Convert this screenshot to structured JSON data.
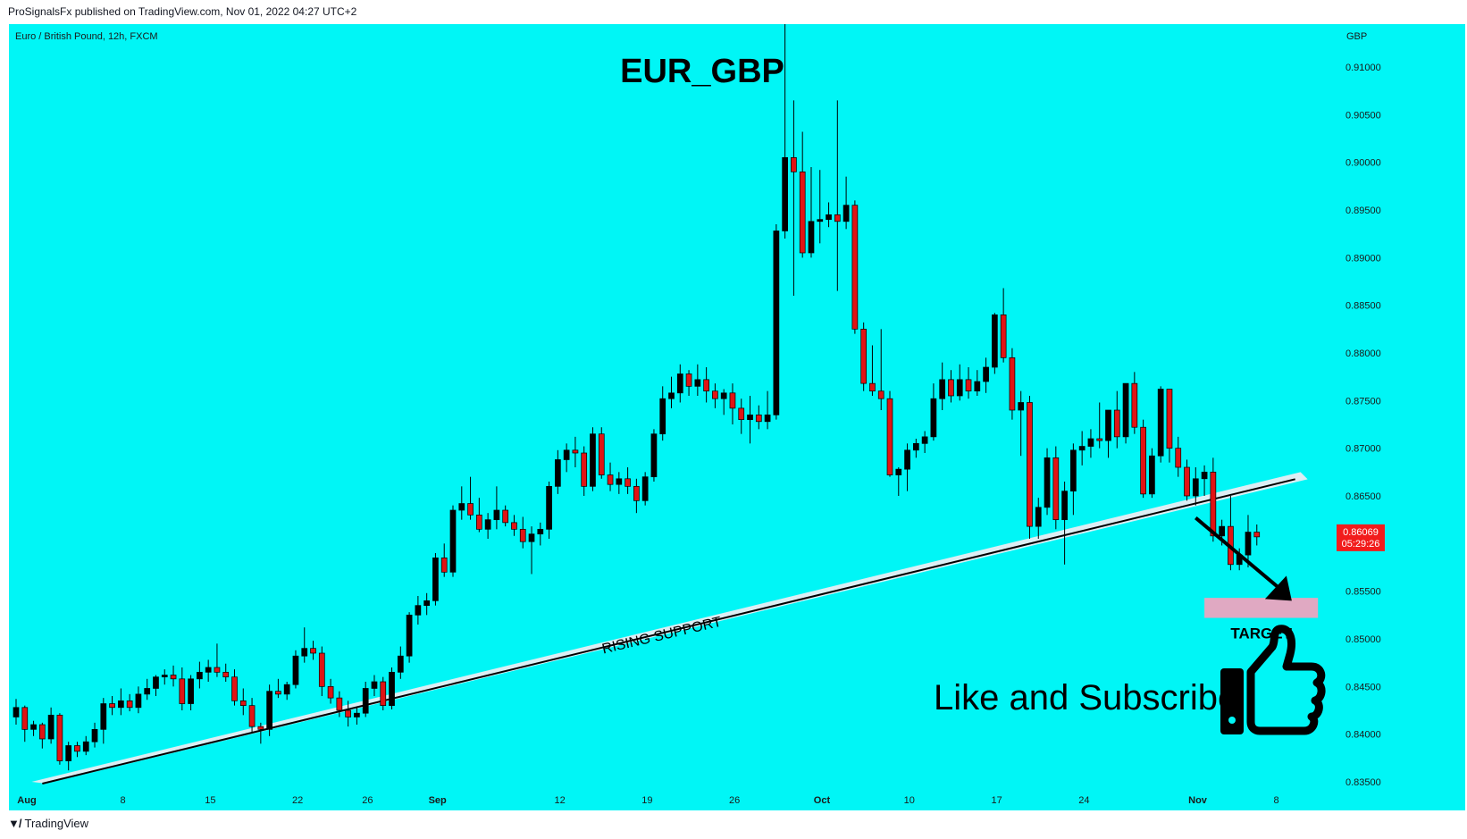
{
  "header": {
    "published": "ProSignalsFx published on TradingView.com, Nov 01, 2022 04:27 UTC+2",
    "symbol": "Euro / British Pound, 12h, FXCM"
  },
  "footer": {
    "brand": "TradingView",
    "brand_icon": "tradingview-logo-icon"
  },
  "chart_data": {
    "type": "candlestick",
    "title": "EUR_GBP",
    "currency_label": "GBP",
    "ylim": [
      0.832,
      0.9145
    ],
    "y_ticks": [
      "0.91000",
      "0.90500",
      "0.90000",
      "0.89500",
      "0.89000",
      "0.88500",
      "0.88000",
      "0.87500",
      "0.87000",
      "0.86500",
      "0.86000",
      "0.85500",
      "0.85000",
      "0.84500",
      "0.84000",
      "0.83500"
    ],
    "y_tick_values": [
      0.91,
      0.905,
      0.9,
      0.895,
      0.89,
      0.885,
      0.88,
      0.875,
      0.87,
      0.865,
      0.86,
      0.855,
      0.85,
      0.845,
      0.84,
      0.835
    ],
    "x_ticks": [
      {
        "label": "Aug",
        "index": 0,
        "bold": true
      },
      {
        "label": "8",
        "index": 11,
        "bold": false
      },
      {
        "label": "15",
        "index": 21,
        "bold": false
      },
      {
        "label": "22",
        "index": 31,
        "bold": false
      },
      {
        "label": "26",
        "index": 39,
        "bold": false
      },
      {
        "label": "Sep",
        "index": 47,
        "bold": true
      },
      {
        "label": "12",
        "index": 61,
        "bold": false
      },
      {
        "label": "19",
        "index": 71,
        "bold": false
      },
      {
        "label": "26",
        "index": 81,
        "bold": false
      },
      {
        "label": "Oct",
        "index": 91,
        "bold": true
      },
      {
        "label": "10",
        "index": 101,
        "bold": false
      },
      {
        "label": "17",
        "index": 111,
        "bold": false
      },
      {
        "label": "24",
        "index": 121,
        "bold": false
      },
      {
        "label": "Nov",
        "index": 134,
        "bold": true
      },
      {
        "label": "8",
        "index": 143,
        "bold": false
      }
    ],
    "candles": [
      [
        0.8418,
        0.8437,
        0.841,
        0.8428
      ],
      [
        0.8428,
        0.843,
        0.8392,
        0.8405
      ],
      [
        0.8405,
        0.8414,
        0.8398,
        0.841
      ],
      [
        0.841,
        0.8412,
        0.8385,
        0.8395
      ],
      [
        0.8395,
        0.8428,
        0.839,
        0.842
      ],
      [
        0.842,
        0.8422,
        0.8368,
        0.8372
      ],
      [
        0.8372,
        0.8392,
        0.8362,
        0.8388
      ],
      [
        0.8388,
        0.8392,
        0.8376,
        0.8382
      ],
      [
        0.8382,
        0.8398,
        0.8378,
        0.8392
      ],
      [
        0.8392,
        0.8412,
        0.8386,
        0.8405
      ],
      [
        0.8405,
        0.8438,
        0.839,
        0.8432
      ],
      [
        0.8432,
        0.844,
        0.842,
        0.8428
      ],
      [
        0.8428,
        0.8448,
        0.842,
        0.8435
      ],
      [
        0.8435,
        0.8442,
        0.8424,
        0.8428
      ],
      [
        0.8428,
        0.845,
        0.8422,
        0.8442
      ],
      [
        0.8442,
        0.8458,
        0.8436,
        0.8448
      ],
      [
        0.8448,
        0.8462,
        0.844,
        0.846
      ],
      [
        0.846,
        0.8468,
        0.8452,
        0.8462
      ],
      [
        0.8462,
        0.8472,
        0.845,
        0.8458
      ],
      [
        0.8458,
        0.847,
        0.8425,
        0.8432
      ],
      [
        0.8432,
        0.8462,
        0.8425,
        0.8458
      ],
      [
        0.8458,
        0.8476,
        0.8448,
        0.8465
      ],
      [
        0.8465,
        0.8478,
        0.8455,
        0.847
      ],
      [
        0.847,
        0.8495,
        0.846,
        0.8465
      ],
      [
        0.8465,
        0.8474,
        0.8455,
        0.846
      ],
      [
        0.846,
        0.8468,
        0.843,
        0.8435
      ],
      [
        0.8435,
        0.8448,
        0.842,
        0.843
      ],
      [
        0.843,
        0.8438,
        0.8402,
        0.8408
      ],
      [
        0.8408,
        0.8412,
        0.839,
        0.8405
      ],
      [
        0.8405,
        0.8452,
        0.8398,
        0.8445
      ],
      [
        0.8445,
        0.8458,
        0.8438,
        0.8442
      ],
      [
        0.8442,
        0.8455,
        0.8436,
        0.8452
      ],
      [
        0.8452,
        0.8488,
        0.8448,
        0.8482
      ],
      [
        0.8482,
        0.8512,
        0.8475,
        0.849
      ],
      [
        0.849,
        0.8498,
        0.8478,
        0.8485
      ],
      [
        0.8485,
        0.8492,
        0.844,
        0.845
      ],
      [
        0.845,
        0.8458,
        0.8432,
        0.8438
      ],
      [
        0.8438,
        0.8445,
        0.8418,
        0.8425
      ],
      [
        0.8425,
        0.8435,
        0.8408,
        0.8418
      ],
      [
        0.8418,
        0.8428,
        0.841,
        0.8422
      ],
      [
        0.8422,
        0.8455,
        0.8418,
        0.8448
      ],
      [
        0.8448,
        0.8462,
        0.844,
        0.8455
      ],
      [
        0.8455,
        0.846,
        0.8425,
        0.843
      ],
      [
        0.843,
        0.847,
        0.8426,
        0.8465
      ],
      [
        0.8465,
        0.8492,
        0.8458,
        0.8482
      ],
      [
        0.8482,
        0.8528,
        0.8475,
        0.8525
      ],
      [
        0.8525,
        0.8545,
        0.8515,
        0.8535
      ],
      [
        0.8535,
        0.8548,
        0.8525,
        0.854
      ],
      [
        0.854,
        0.859,
        0.8535,
        0.8585
      ],
      [
        0.8585,
        0.86,
        0.8565,
        0.857
      ],
      [
        0.857,
        0.864,
        0.8565,
        0.8635
      ],
      [
        0.8635,
        0.866,
        0.8625,
        0.8642
      ],
      [
        0.8642,
        0.867,
        0.8625,
        0.863
      ],
      [
        0.863,
        0.8648,
        0.8612,
        0.8615
      ],
      [
        0.8615,
        0.8632,
        0.8605,
        0.8625
      ],
      [
        0.8625,
        0.866,
        0.8615,
        0.8635
      ],
      [
        0.8635,
        0.864,
        0.8618,
        0.8622
      ],
      [
        0.8622,
        0.863,
        0.8608,
        0.8615
      ],
      [
        0.8615,
        0.8628,
        0.8595,
        0.8602
      ],
      [
        0.8602,
        0.8618,
        0.8568,
        0.861
      ],
      [
        0.861,
        0.8622,
        0.8598,
        0.8615
      ],
      [
        0.8615,
        0.8665,
        0.8605,
        0.866
      ],
      [
        0.866,
        0.8698,
        0.8652,
        0.8688
      ],
      [
        0.8688,
        0.8705,
        0.8675,
        0.8698
      ],
      [
        0.8698,
        0.8712,
        0.868,
        0.8695
      ],
      [
        0.8695,
        0.8702,
        0.865,
        0.866
      ],
      [
        0.866,
        0.8722,
        0.8655,
        0.8715
      ],
      [
        0.8715,
        0.8722,
        0.8668,
        0.8672
      ],
      [
        0.8672,
        0.8685,
        0.8655,
        0.8662
      ],
      [
        0.8662,
        0.8675,
        0.8652,
        0.8668
      ],
      [
        0.8668,
        0.868,
        0.8652,
        0.866
      ],
      [
        0.866,
        0.8668,
        0.8632,
        0.8645
      ],
      [
        0.8645,
        0.8675,
        0.864,
        0.867
      ],
      [
        0.867,
        0.872,
        0.8665,
        0.8715
      ],
      [
        0.8715,
        0.8765,
        0.8708,
        0.8752
      ],
      [
        0.8752,
        0.8775,
        0.8742,
        0.8758
      ],
      [
        0.8758,
        0.8788,
        0.8748,
        0.8778
      ],
      [
        0.8778,
        0.8782,
        0.8755,
        0.8765
      ],
      [
        0.8765,
        0.8788,
        0.8755,
        0.8772
      ],
      [
        0.8772,
        0.8785,
        0.8748,
        0.876
      ],
      [
        0.876,
        0.8768,
        0.8742,
        0.8752
      ],
      [
        0.8752,
        0.8762,
        0.8735,
        0.8758
      ],
      [
        0.8758,
        0.8768,
        0.8725,
        0.8742
      ],
      [
        0.8742,
        0.8752,
        0.8715,
        0.873
      ],
      [
        0.873,
        0.8755,
        0.8705,
        0.8735
      ],
      [
        0.8735,
        0.8745,
        0.872,
        0.8728
      ],
      [
        0.8728,
        0.876,
        0.872,
        0.8735
      ],
      [
        0.8735,
        0.8935,
        0.873,
        0.8928
      ],
      [
        0.8928,
        0.9155,
        0.892,
        0.9005
      ],
      [
        0.9005,
        0.9065,
        0.886,
        0.899
      ],
      [
        0.899,
        0.9032,
        0.89,
        0.8905
      ],
      [
        0.8905,
        0.8995,
        0.89,
        0.8938
      ],
      [
        0.8938,
        0.8992,
        0.8915,
        0.894
      ],
      [
        0.894,
        0.8958,
        0.8932,
        0.8945
      ],
      [
        0.8945,
        0.9065,
        0.8865,
        0.8938
      ],
      [
        0.8938,
        0.8985,
        0.893,
        0.8955
      ],
      [
        0.8955,
        0.896,
        0.882,
        0.8825
      ],
      [
        0.8825,
        0.8832,
        0.876,
        0.8768
      ],
      [
        0.8768,
        0.8808,
        0.8755,
        0.876
      ],
      [
        0.876,
        0.8825,
        0.874,
        0.8752
      ],
      [
        0.8752,
        0.876,
        0.867,
        0.8672
      ],
      [
        0.8672,
        0.868,
        0.865,
        0.8678
      ],
      [
        0.8678,
        0.8705,
        0.8655,
        0.8698
      ],
      [
        0.8698,
        0.871,
        0.869,
        0.8705
      ],
      [
        0.8705,
        0.8718,
        0.8695,
        0.8712
      ],
      [
        0.8712,
        0.8768,
        0.8708,
        0.8752
      ],
      [
        0.8752,
        0.879,
        0.874,
        0.8772
      ],
      [
        0.8772,
        0.8782,
        0.8748,
        0.8755
      ],
      [
        0.8755,
        0.8788,
        0.875,
        0.8772
      ],
      [
        0.8772,
        0.8785,
        0.8752,
        0.876
      ],
      [
        0.876,
        0.8782,
        0.8755,
        0.877
      ],
      [
        0.877,
        0.8795,
        0.8758,
        0.8785
      ],
      [
        0.8785,
        0.8842,
        0.8778,
        0.884
      ],
      [
        0.884,
        0.8868,
        0.879,
        0.8795
      ],
      [
        0.8795,
        0.8805,
        0.873,
        0.874
      ],
      [
        0.874,
        0.876,
        0.8692,
        0.8748
      ],
      [
        0.8748,
        0.8755,
        0.8605,
        0.8618
      ],
      [
        0.8618,
        0.8648,
        0.8605,
        0.8638
      ],
      [
        0.8638,
        0.87,
        0.863,
        0.869
      ],
      [
        0.869,
        0.8702,
        0.8615,
        0.8625
      ],
      [
        0.8625,
        0.8665,
        0.8578,
        0.8655
      ],
      [
        0.8655,
        0.8705,
        0.863,
        0.8698
      ],
      [
        0.8698,
        0.8718,
        0.8682,
        0.8702
      ],
      [
        0.8702,
        0.872,
        0.869,
        0.871
      ],
      [
        0.871,
        0.8748,
        0.87,
        0.8708
      ],
      [
        0.8708,
        0.8738,
        0.869,
        0.874
      ],
      [
        0.874,
        0.876,
        0.87,
        0.8712
      ],
      [
        0.8712,
        0.8765,
        0.8705,
        0.8768
      ],
      [
        0.8768,
        0.878,
        0.8715,
        0.8722
      ],
      [
        0.8722,
        0.873,
        0.8648,
        0.8652
      ],
      [
        0.8652,
        0.87,
        0.8648,
        0.8692
      ],
      [
        0.8692,
        0.8765,
        0.8685,
        0.8762
      ],
      [
        0.8762,
        0.8762,
        0.8685,
        0.87
      ],
      [
        0.87,
        0.8712,
        0.867,
        0.868
      ],
      [
        0.868,
        0.8688,
        0.8645,
        0.865
      ],
      [
        0.865,
        0.868,
        0.864,
        0.8668
      ],
      [
        0.8668,
        0.8682,
        0.865,
        0.8675
      ],
      [
        0.8675,
        0.869,
        0.8602,
        0.8608
      ],
      [
        0.8608,
        0.8625,
        0.8598,
        0.8618
      ],
      [
        0.8618,
        0.865,
        0.8572,
        0.8578
      ],
      [
        0.8578,
        0.8595,
        0.8572,
        0.8588
      ],
      [
        0.8588,
        0.863,
        0.8575,
        0.8612
      ],
      [
        0.8612,
        0.862,
        0.8598,
        0.8607
      ]
    ],
    "last_price": "0.86069",
    "countdown": "05:29:26",
    "annotations": {
      "support_label": "RISING SUPPORT",
      "support_line": {
        "start": {
          "index": 3,
          "price": 0.835
        },
        "end": {
          "index": 147,
          "price": 0.866
        }
      },
      "target_label": "TARGET",
      "target_zone": {
        "from_index": 136,
        "to_index": 149,
        "low": 0.8522,
        "high": 0.8543
      },
      "arrow": {
        "from": {
          "index": 135,
          "price": 0.8627
        },
        "to": {
          "index": 146,
          "price": 0.854
        }
      },
      "cta": "Like and Subscribe",
      "cta_icon": "thumbs-up-icon"
    },
    "colors": {
      "background": "#00f6f6",
      "up": "#000000",
      "down": "#e11414",
      "support_band": "#dceef4",
      "target": "#e0a9c2",
      "price_badge": "#f21c1c"
    },
    "grid": false
  }
}
